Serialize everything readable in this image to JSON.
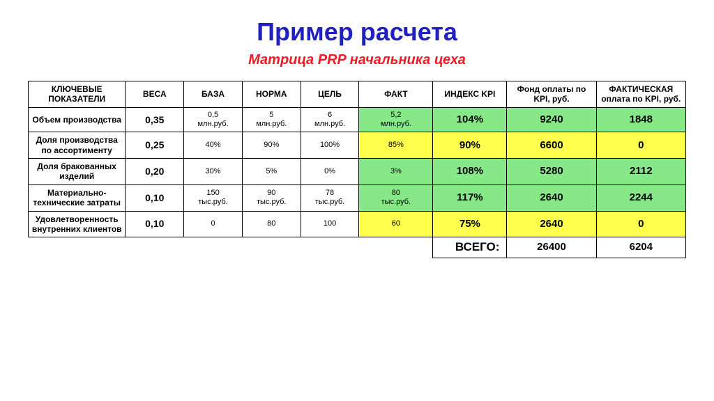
{
  "title": "Пример расчета",
  "subtitle": "Матрица PRP начальника цеха",
  "colors": {
    "title": "#2020c0",
    "subtitle": "#ee1c25",
    "green": "#87e887",
    "yellow": "#ffff4d",
    "border": "#000000",
    "bg": "#ffffff"
  },
  "columns": [
    "КЛЮЧЕВЫЕ ПОКАЗАТЕЛИ",
    "ВЕСА",
    "БАЗА",
    "НОРМА",
    "ЦЕЛЬ",
    "ФАКТ",
    "ИНДЕКС KPI",
    "Фонд оплаты по KPI, руб.",
    "ФАКТИЧЕСКАЯ оплата по KPI, руб."
  ],
  "rows": [
    {
      "name": "Объем производства",
      "weight": "0,35",
      "base": "0,5 млн.руб.",
      "norm": "5 млн.руб.",
      "goal": "6 млн.руб.",
      "fact": "5,2 млн.руб.",
      "fact_bg": "green",
      "index": "104%",
      "index_bg": "green",
      "fund": "9240",
      "fund_bg": "green",
      "actual": "1848",
      "actual_bg": "green"
    },
    {
      "name": "Доля производства по ассортименту",
      "weight": "0,25",
      "base": "40%",
      "norm": "90%",
      "goal": "100%",
      "fact": "85%",
      "fact_bg": "yellow",
      "index": "90%",
      "index_bg": "yellow",
      "fund": "6600",
      "fund_bg": "yellow",
      "actual": "0",
      "actual_bg": "yellow"
    },
    {
      "name": "Доля бракованных изделий",
      "weight": "0,20",
      "base": "30%",
      "norm": "5%",
      "goal": "0%",
      "fact": "3%",
      "fact_bg": "green",
      "index": "108%",
      "index_bg": "green",
      "fund": "5280",
      "fund_bg": "green",
      "actual": "2112",
      "actual_bg": "green"
    },
    {
      "name": "Материально-технические затраты",
      "weight": "0,10",
      "base": "150 тыс.руб.",
      "norm": "90 тыс.руб.",
      "goal": "78 тыс.руб.",
      "fact": "80 тыс.руб.",
      "fact_bg": "green",
      "index": "117%",
      "index_bg": "green",
      "fund": "2640",
      "fund_bg": "green",
      "actual": "2244",
      "actual_bg": "green"
    },
    {
      "name": "Удовлетворенность внутренних клиентов",
      "weight": "0,10",
      "base": "0",
      "norm": "80",
      "goal": "100",
      "fact": "60",
      "fact_bg": "yellow",
      "index": "75%",
      "index_bg": "yellow",
      "fund": "2640",
      "fund_bg": "yellow",
      "actual": "0",
      "actual_bg": "yellow"
    }
  ],
  "totals": {
    "label": "ВСЕГО:",
    "fund": "26400",
    "actual": "6204"
  }
}
